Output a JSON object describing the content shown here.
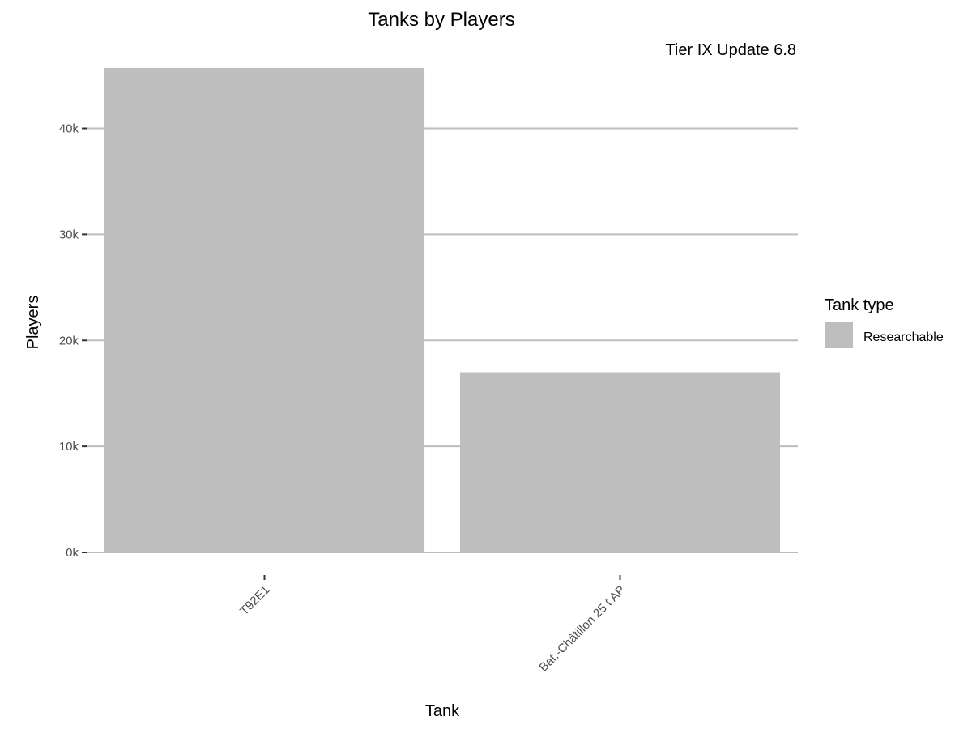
{
  "chart_data": {
    "type": "bar",
    "title": "Tanks by Players",
    "subtitle": "Tier IX Update 6.8",
    "xlabel": "Tank",
    "ylabel": "Players",
    "categories": [
      "T92E1",
      "Bat.-Châtillon 25 t AP"
    ],
    "series": [
      {
        "name": "Researchable",
        "values": [
          45700,
          17000
        ]
      }
    ],
    "ylim": [
      0,
      46000
    ],
    "yticks": [
      0,
      10000,
      20000,
      30000,
      40000
    ],
    "ytick_labels": [
      "0k",
      "10k",
      "20k",
      "30k",
      "40k"
    ],
    "grid": true,
    "legend": {
      "title": "Tank type",
      "position": "right",
      "entries": [
        "Researchable"
      ]
    },
    "colors": {
      "bar": "#bebebe",
      "grid": "#bdbdbd",
      "background": "#ffffff"
    }
  }
}
